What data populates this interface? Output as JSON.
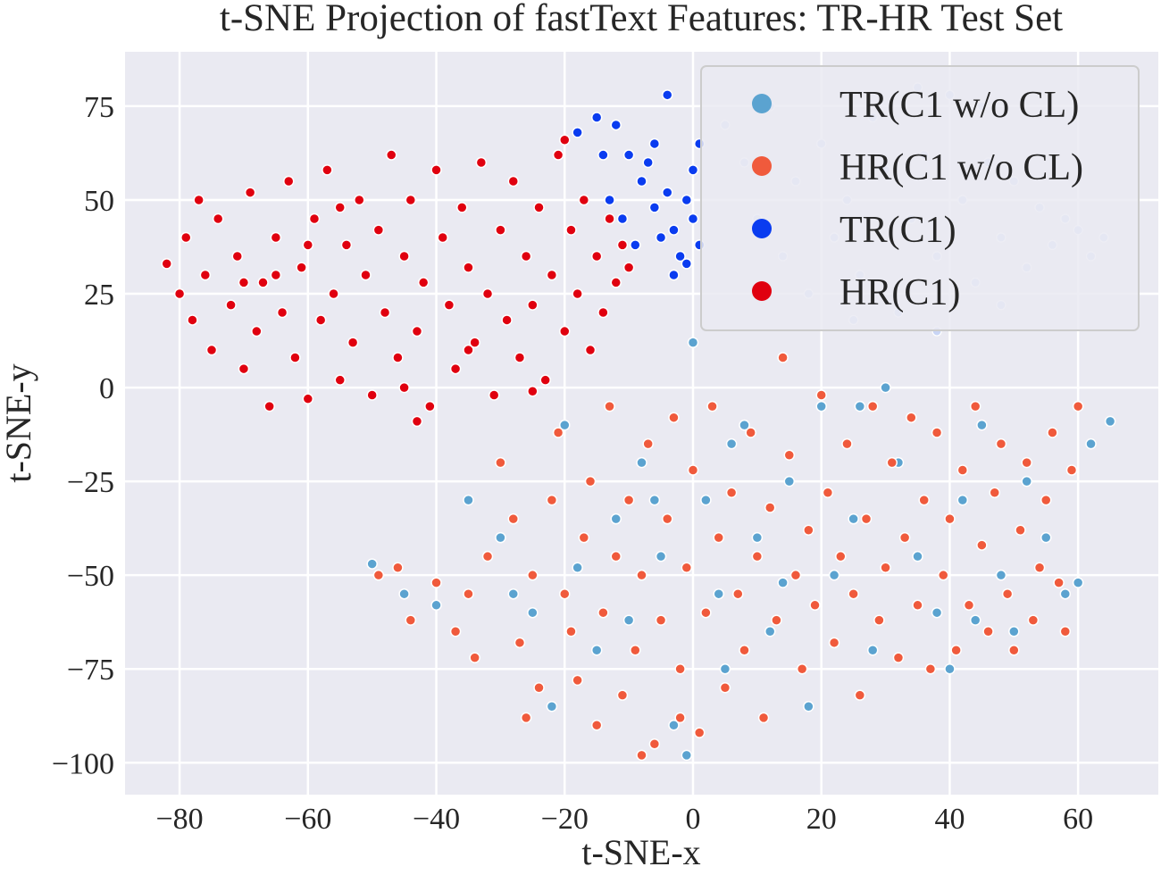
{
  "chart_data": {
    "type": "scatter",
    "title": "t-SNE Projection of fastText Features: TR-HR Test Set",
    "xlabel": "t-SNE-x",
    "ylabel": "t-SNE-y",
    "xlim": [
      -88.5,
      72.5
    ],
    "ylim": [
      -108.5,
      89.5
    ],
    "xticks": [
      -80,
      -60,
      -40,
      -20,
      0,
      20,
      40,
      60
    ],
    "yticks": [
      -100,
      -75,
      -50,
      -25,
      0,
      25,
      50,
      75
    ],
    "xtick_labels": [
      "−80",
      "−60",
      "−40",
      "−20",
      "0",
      "20",
      "40",
      "60"
    ],
    "ytick_labels": [
      "−100",
      "−75",
      "−50",
      "−25",
      "0",
      "25",
      "50",
      "75"
    ],
    "grid": true,
    "background": "#eaeaf2",
    "legend": {
      "placement": "top-right",
      "entries": [
        {
          "label": "TR(C1 w/o CL)",
          "color": "#5ba3d0"
        },
        {
          "label": "HR(C1 w/o CL)",
          "color": "#f05a3c"
        },
        {
          "label": "TR(C1)",
          "color": "#0a3cf0"
        },
        {
          "label": "HR(C1)",
          "color": "#e0000f"
        }
      ]
    },
    "series": [
      {
        "name": "TR(C1 w/o CL)",
        "color": "#5ba3d0",
        "points": [
          [
            -50,
            -47
          ],
          [
            -45,
            -55
          ],
          [
            -40,
            -58
          ],
          [
            -35,
            -30
          ],
          [
            -30,
            -40
          ],
          [
            -25,
            -60
          ],
          [
            -22,
            -85
          ],
          [
            -20,
            -10
          ],
          [
            -18,
            -48
          ],
          [
            -15,
            -70
          ],
          [
            -12,
            -35
          ],
          [
            -10,
            -62
          ],
          [
            -8,
            -20
          ],
          [
            -5,
            -45
          ],
          [
            -3,
            -90
          ],
          [
            -1,
            -98
          ],
          [
            0,
            12
          ],
          [
            2,
            -30
          ],
          [
            4,
            -55
          ],
          [
            5,
            -75
          ],
          [
            8,
            -10
          ],
          [
            10,
            -40
          ],
          [
            12,
            -65
          ],
          [
            15,
            -25
          ],
          [
            18,
            -85
          ],
          [
            20,
            -5
          ],
          [
            22,
            -50
          ],
          [
            25,
            -35
          ],
          [
            28,
            -70
          ],
          [
            30,
            0
          ],
          [
            32,
            -20
          ],
          [
            35,
            -45
          ],
          [
            38,
            -60
          ],
          [
            40,
            -75
          ],
          [
            42,
            -30
          ],
          [
            45,
            -10
          ],
          [
            48,
            -50
          ],
          [
            50,
            -65
          ],
          [
            52,
            -25
          ],
          [
            55,
            -40
          ],
          [
            58,
            -55
          ],
          [
            60,
            -52
          ],
          [
            62,
            -15
          ],
          [
            65,
            -9
          ],
          [
            -28,
            -55
          ],
          [
            -6,
            -30
          ],
          [
            6,
            -15
          ],
          [
            14,
            -52
          ],
          [
            26,
            -5
          ],
          [
            44,
            -62
          ]
        ]
      },
      {
        "name": "HR(C1 w/o CL)",
        "color": "#f05a3c",
        "points": [
          [
            -49,
            -50
          ],
          [
            -46,
            -48
          ],
          [
            -44,
            -62
          ],
          [
            -40,
            -52
          ],
          [
            -37,
            -65
          ],
          [
            -34,
            -72
          ],
          [
            -32,
            -45
          ],
          [
            -30,
            -20
          ],
          [
            -28,
            -35
          ],
          [
            -27,
            -68
          ],
          [
            -25,
            -50
          ],
          [
            -24,
            -80
          ],
          [
            -22,
            -30
          ],
          [
            -21,
            -12
          ],
          [
            -20,
            -55
          ],
          [
            -18,
            -78
          ],
          [
            -17,
            -40
          ],
          [
            -16,
            -25
          ],
          [
            -15,
            -90
          ],
          [
            -14,
            -60
          ],
          [
            -13,
            -5
          ],
          [
            -12,
            -45
          ],
          [
            -11,
            -82
          ],
          [
            -10,
            -30
          ],
          [
            -9,
            -70
          ],
          [
            -8,
            -50
          ],
          [
            -7,
            -15
          ],
          [
            -6,
            -95
          ],
          [
            -5,
            -62
          ],
          [
            -4,
            -35
          ],
          [
            -3,
            -8
          ],
          [
            -2,
            -75
          ],
          [
            -1,
            -48
          ],
          [
            0,
            -22
          ],
          [
            1,
            -92
          ],
          [
            2,
            -60
          ],
          [
            3,
            -5
          ],
          [
            4,
            -40
          ],
          [
            5,
            -80
          ],
          [
            6,
            -28
          ],
          [
            7,
            -55
          ],
          [
            8,
            -70
          ],
          [
            9,
            -12
          ],
          [
            10,
            -45
          ],
          [
            11,
            -88
          ],
          [
            12,
            -32
          ],
          [
            13,
            -62
          ],
          [
            14,
            8
          ],
          [
            15,
            -18
          ],
          [
            16,
            -50
          ],
          [
            17,
            -75
          ],
          [
            18,
            -38
          ],
          [
            19,
            -58
          ],
          [
            20,
            -2
          ],
          [
            21,
            -28
          ],
          [
            22,
            -68
          ],
          [
            23,
            -45
          ],
          [
            24,
            -15
          ],
          [
            25,
            -55
          ],
          [
            26,
            -82
          ],
          [
            27,
            -35
          ],
          [
            28,
            -5
          ],
          [
            29,
            -62
          ],
          [
            30,
            -48
          ],
          [
            31,
            -20
          ],
          [
            32,
            -72
          ],
          [
            33,
            -40
          ],
          [
            34,
            -8
          ],
          [
            35,
            -58
          ],
          [
            36,
            -30
          ],
          [
            37,
            -75
          ],
          [
            38,
            -12
          ],
          [
            39,
            -50
          ],
          [
            40,
            -35
          ],
          [
            41,
            -70
          ],
          [
            42,
            -22
          ],
          [
            43,
            -58
          ],
          [
            44,
            -5
          ],
          [
            45,
            -42
          ],
          [
            46,
            -65
          ],
          [
            47,
            -28
          ],
          [
            48,
            -15
          ],
          [
            49,
            -55
          ],
          [
            50,
            -70
          ],
          [
            51,
            -38
          ],
          [
            52,
            -20
          ],
          [
            53,
            -62
          ],
          [
            54,
            -48
          ],
          [
            55,
            -30
          ],
          [
            56,
            -12
          ],
          [
            57,
            -52
          ],
          [
            58,
            -65
          ],
          [
            59,
            -22
          ],
          [
            60,
            -5
          ],
          [
            -35,
            -55
          ],
          [
            -26,
            -88
          ],
          [
            -19,
            -65
          ],
          [
            -8,
            -98
          ],
          [
            -2,
            -88
          ]
        ]
      },
      {
        "name": "TR(C1)",
        "color": "#0a3cf0",
        "points": [
          [
            -18,
            68
          ],
          [
            -15,
            72
          ],
          [
            -12,
            70
          ],
          [
            -10,
            62
          ],
          [
            -8,
            55
          ],
          [
            -6,
            48
          ],
          [
            -5,
            40
          ],
          [
            -4,
            78
          ],
          [
            -3,
            30
          ],
          [
            -2,
            35
          ],
          [
            -1,
            50
          ],
          [
            0,
            45
          ],
          [
            1,
            38
          ],
          [
            -11,
            45
          ],
          [
            -9,
            38
          ],
          [
            -7,
            60
          ],
          [
            -6,
            65
          ],
          [
            -4,
            52
          ],
          [
            -3,
            42
          ],
          [
            -1,
            33
          ],
          [
            0,
            58
          ],
          [
            1,
            65
          ],
          [
            -13,
            50
          ],
          [
            -14,
            62
          ]
        ]
      },
      {
        "name": "HR(C1)",
        "color": "#e0000f",
        "points": [
          [
            -82,
            33
          ],
          [
            -80,
            25
          ],
          [
            -79,
            40
          ],
          [
            -78,
            18
          ],
          [
            -77,
            50
          ],
          [
            -76,
            30
          ],
          [
            -75,
            10
          ],
          [
            -74,
            45
          ],
          [
            -72,
            22
          ],
          [
            -71,
            35
          ],
          [
            -70,
            5
          ],
          [
            -69,
            52
          ],
          [
            -68,
            15
          ],
          [
            -67,
            28
          ],
          [
            -66,
            -5
          ],
          [
            -65,
            40
          ],
          [
            -64,
            20
          ],
          [
            -63,
            55
          ],
          [
            -62,
            8
          ],
          [
            -61,
            32
          ],
          [
            -60,
            -3
          ],
          [
            -59,
            45
          ],
          [
            -58,
            18
          ],
          [
            -57,
            58
          ],
          [
            -56,
            25
          ],
          [
            -55,
            2
          ],
          [
            -54,
            38
          ],
          [
            -53,
            12
          ],
          [
            -52,
            50
          ],
          [
            -51,
            30
          ],
          [
            -50,
            -2
          ],
          [
            -49,
            42
          ],
          [
            -48,
            20
          ],
          [
            -47,
            62
          ],
          [
            -46,
            8
          ],
          [
            -45,
            35
          ],
          [
            -44,
            50
          ],
          [
            -43,
            15
          ],
          [
            -42,
            28
          ],
          [
            -41,
            -5
          ],
          [
            -40,
            58
          ],
          [
            -39,
            40
          ],
          [
            -38,
            22
          ],
          [
            -37,
            5
          ],
          [
            -36,
            48
          ],
          [
            -35,
            32
          ],
          [
            -34,
            12
          ],
          [
            -33,
            60
          ],
          [
            -32,
            25
          ],
          [
            -31,
            -2
          ],
          [
            -30,
            42
          ],
          [
            -29,
            18
          ],
          [
            -28,
            55
          ],
          [
            -27,
            8
          ],
          [
            -26,
            35
          ],
          [
            -25,
            22
          ],
          [
            -24,
            48
          ],
          [
            -23,
            2
          ],
          [
            -22,
            30
          ],
          [
            -21,
            62
          ],
          [
            -20,
            15
          ],
          [
            -19,
            42
          ],
          [
            -18,
            25
          ],
          [
            -17,
            50
          ],
          [
            -16,
            10
          ],
          [
            -15,
            35
          ],
          [
            -14,
            20
          ],
          [
            -13,
            45
          ],
          [
            -12,
            28
          ],
          [
            -11,
            38
          ],
          [
            -10,
            32
          ],
          [
            -43,
            -9
          ],
          [
            -35,
            10
          ],
          [
            -25,
            -1
          ],
          [
            -20,
            66
          ],
          [
            -55,
            48
          ],
          [
            -60,
            38
          ],
          [
            -65,
            30
          ],
          [
            -70,
            28
          ],
          [
            -45,
            0
          ]
        ]
      }
    ],
    "background_cluster": {
      "color": "#c9d5f5",
      "points": [
        [
          5,
          70
        ],
        [
          8,
          60
        ],
        [
          10,
          45
        ],
        [
          12,
          75
        ],
        [
          14,
          35
        ],
        [
          16,
          55
        ],
        [
          18,
          25
        ],
        [
          20,
          65
        ],
        [
          22,
          40
        ],
        [
          24,
          50
        ],
        [
          26,
          30
        ],
        [
          28,
          72
        ],
        [
          30,
          58
        ],
        [
          32,
          20
        ],
        [
          34,
          45
        ],
        [
          36,
          62
        ],
        [
          38,
          35
        ],
        [
          40,
          78
        ],
        [
          42,
          50
        ],
        [
          44,
          28
        ],
        [
          46,
          60
        ],
        [
          48,
          40
        ],
        [
          50,
          55
        ],
        [
          52,
          32
        ],
        [
          54,
          48
        ],
        [
          56,
          38
        ],
        [
          58,
          45
        ],
        [
          60,
          42
        ],
        [
          62,
          35
        ],
        [
          64,
          40
        ],
        [
          35,
          80
        ],
        [
          45,
          75
        ],
        [
          38,
          15
        ],
        [
          25,
          18
        ],
        [
          48,
          22
        ]
      ]
    }
  }
}
